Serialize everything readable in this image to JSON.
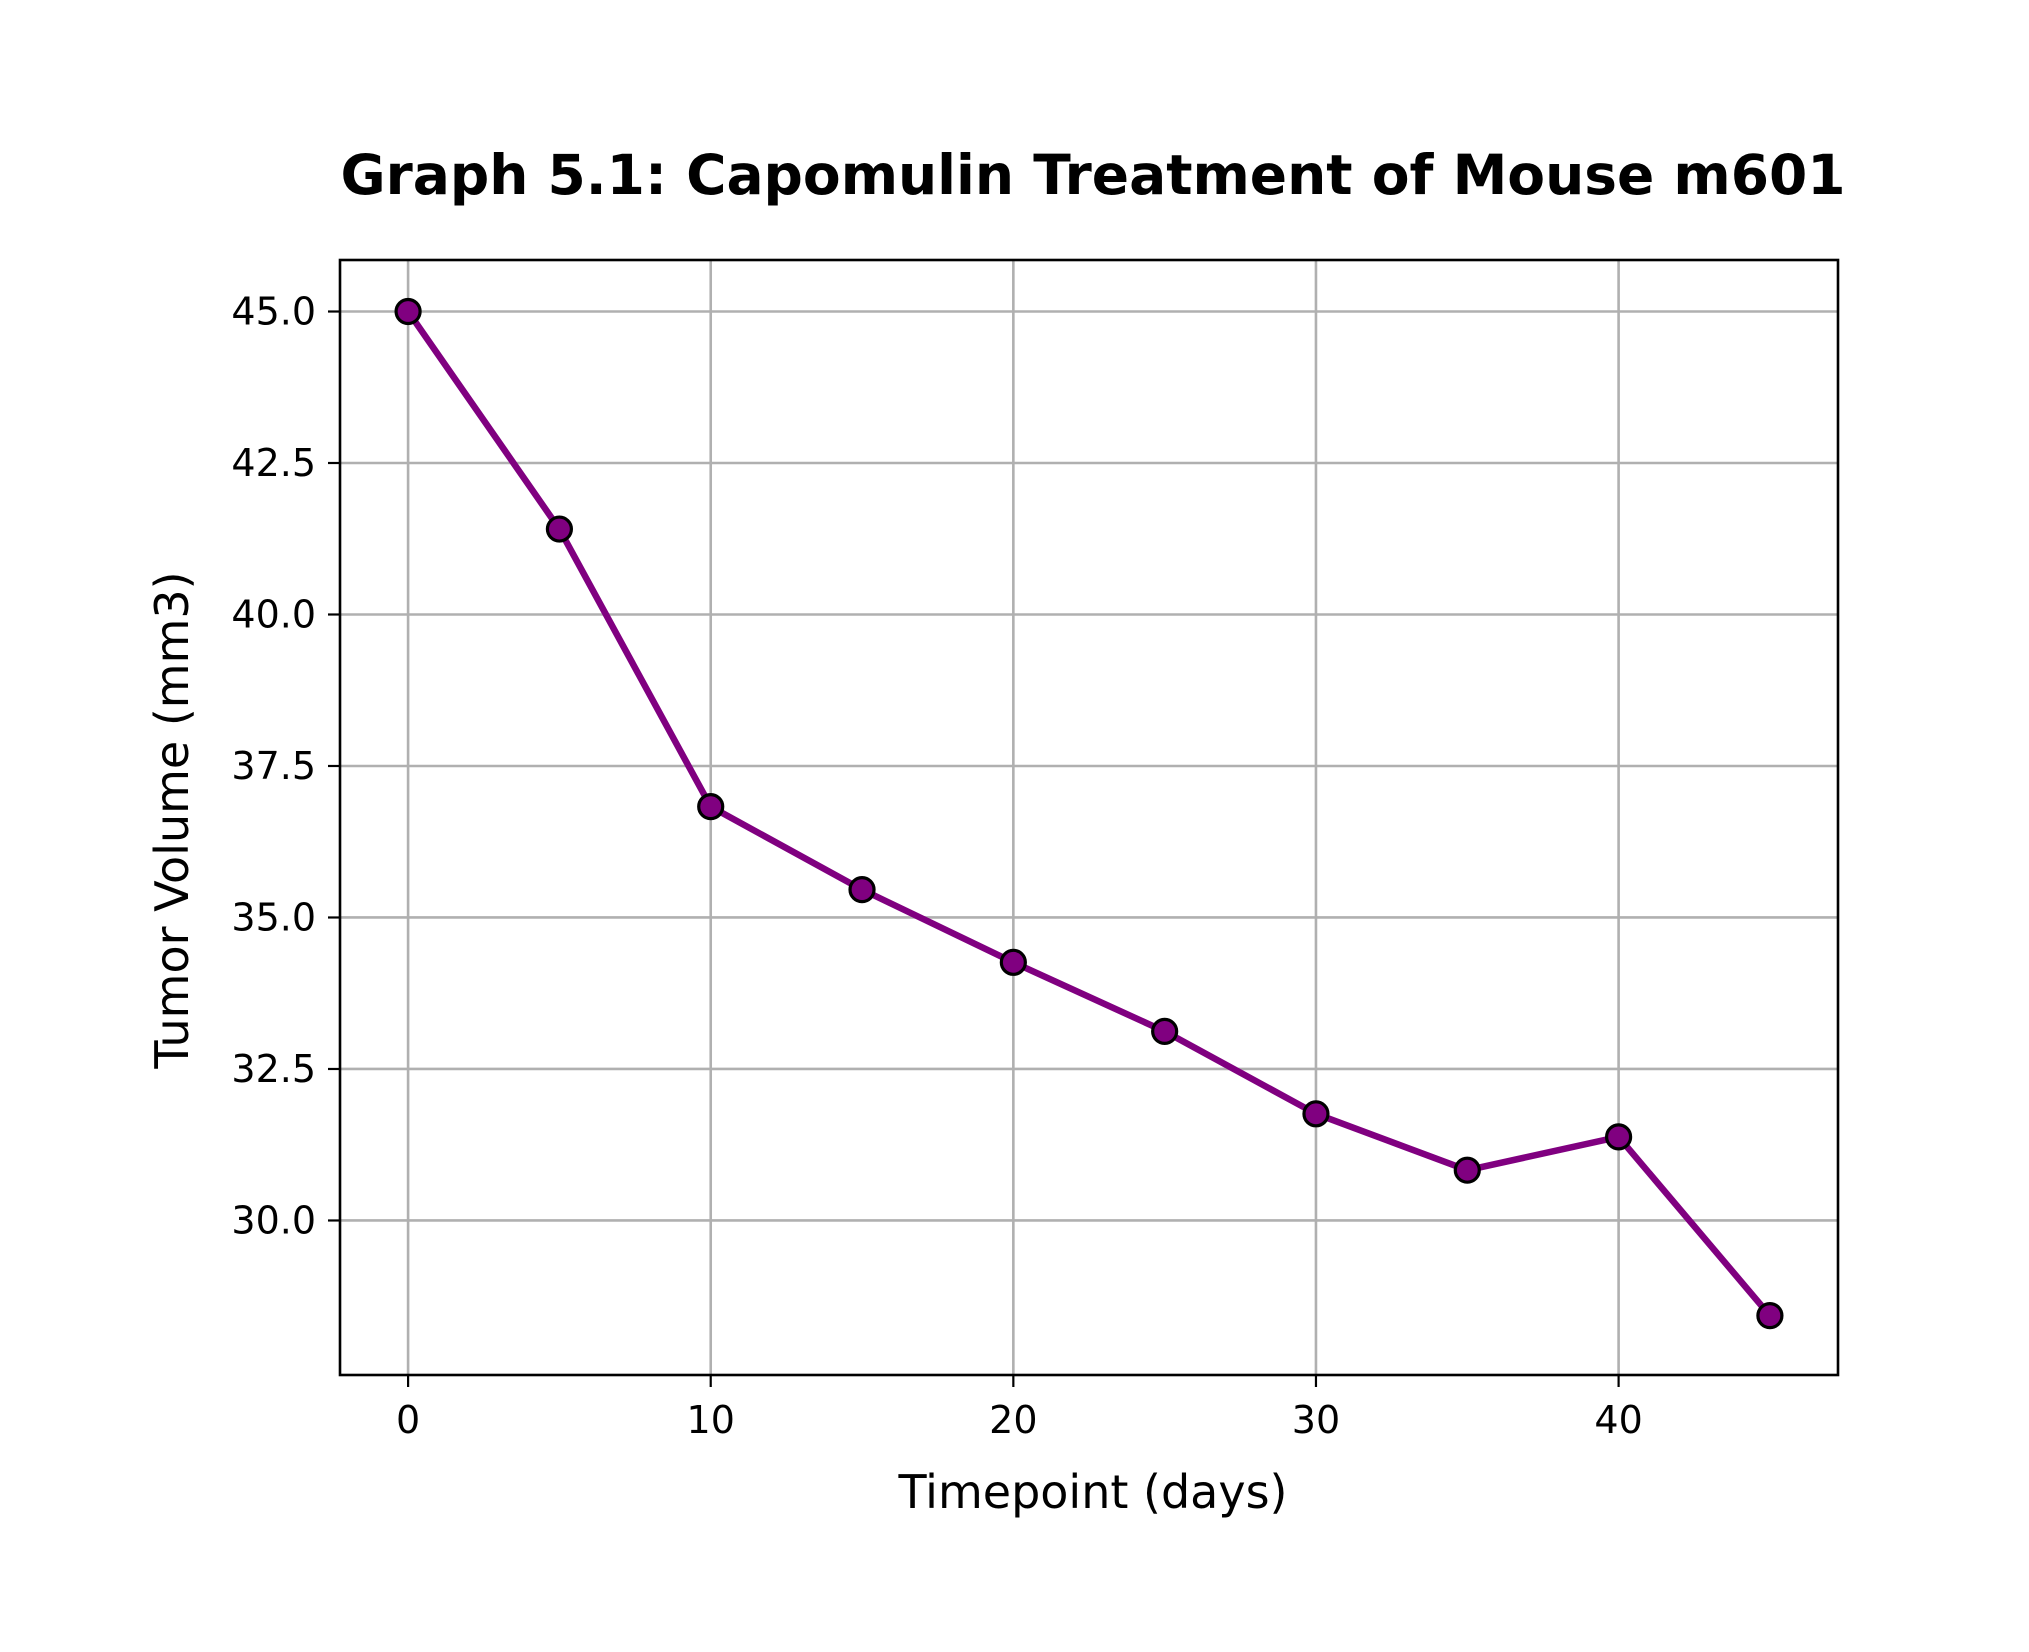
{
  "chart_data": {
    "type": "line",
    "title": "Graph 5.1: Capomulin Treatment of Mouse m601",
    "xlabel": "Timepoint (days)",
    "ylabel": "Tumor Volume (mm3)",
    "xlim": [
      -2.25,
      47.25
    ],
    "ylim": [
      27.45,
      45.85
    ],
    "xticks": [
      0,
      10,
      20,
      30,
      40
    ],
    "xtick_labels": [
      "0",
      "10",
      "20",
      "30",
      "40"
    ],
    "yticks": [
      30.0,
      32.5,
      35.0,
      37.5,
      40.0,
      42.5,
      45.0
    ],
    "ytick_labels": [
      "30.0",
      "32.5",
      "35.0",
      "37.5",
      "40.0",
      "42.5",
      "45.0"
    ],
    "grid": true,
    "series": [
      {
        "x": [
          0,
          5,
          10,
          15,
          20,
          25,
          30,
          35,
          40,
          45
        ],
        "y": [
          45.0,
          41.41,
          36.83,
          35.46,
          34.26,
          33.12,
          31.76,
          30.83,
          31.38,
          28.43
        ],
        "line_color": "#800080",
        "marker_fill": "#800080",
        "marker_edge": "#000000"
      }
    ]
  }
}
